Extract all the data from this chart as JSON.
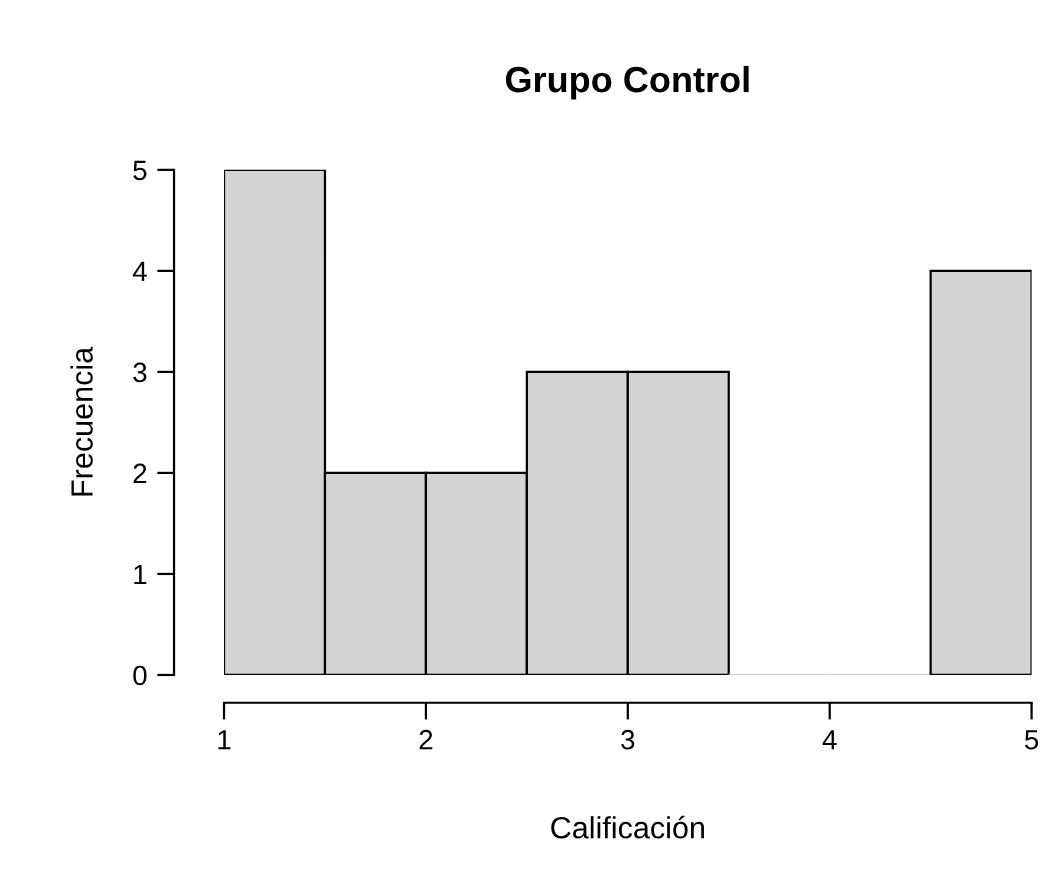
{
  "chart_data": {
    "type": "histogram",
    "title": "Grupo Control",
    "xlabel": "Calificación",
    "ylabel": "Frecuencia",
    "bins": [
      1,
      1.5,
      2,
      2.5,
      3,
      3.5,
      4,
      4.5,
      5
    ],
    "values": [
      5,
      2,
      2,
      3,
      3,
      0,
      0,
      4
    ],
    "color": "#d3d3d3",
    "xlim": [
      1,
      5
    ],
    "ylim": [
      0,
      5
    ],
    "xticks": [
      1,
      2,
      3,
      4,
      5
    ],
    "yticks": [
      0,
      1,
      2,
      3,
      4,
      5
    ],
    "grid": false,
    "legend": false
  }
}
